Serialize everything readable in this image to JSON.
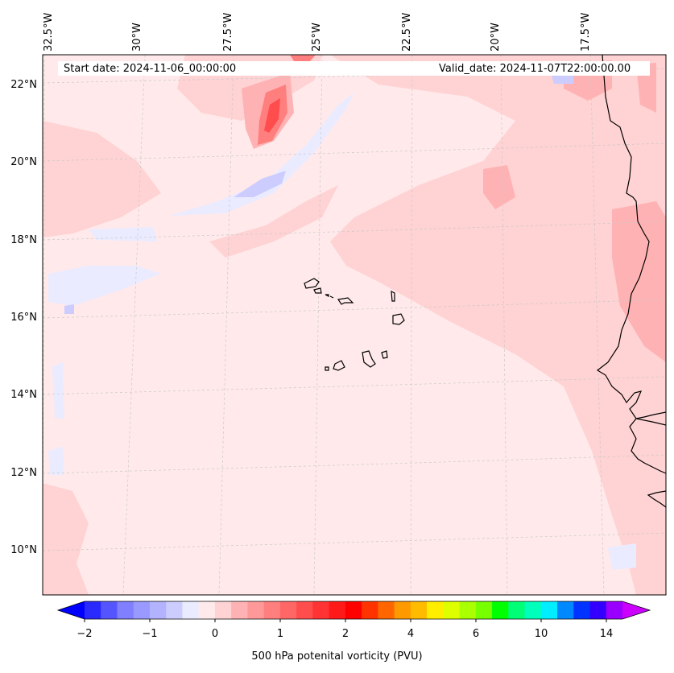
{
  "map": {
    "background_color": "#ffe9ea",
    "lon_labels": [
      "32.5°W",
      "30°W",
      "27.5°W",
      "25°W",
      "22.5°W",
      "20°W",
      "17.5°W"
    ],
    "lat_labels": [
      "22°N",
      "20°N",
      "18°N",
      "16°N",
      "14°N",
      "12°N",
      "10°N"
    ],
    "start_date": "Start date: 2024-11-06_00:00:00",
    "valid_date": "Valid_date: 2024-11-07T22:00:00.00"
  },
  "colorbar": {
    "label": "500 hPa potenital vorticity (PVU)",
    "ticks": [
      "−2",
      "−1",
      "0",
      "1",
      "2",
      "4",
      "6",
      "10",
      "14"
    ],
    "colors": [
      "#0000ff",
      "#2a2aff",
      "#5555ff",
      "#7f7fff",
      "#9999ff",
      "#b2b2ff",
      "#ccccff",
      "#ebebff",
      "#ffe9ea",
      "#ffd2d3",
      "#ffb2b3",
      "#ff9999",
      "#ff7f7f",
      "#ff6666",
      "#ff4c4c",
      "#ff3333",
      "#ff1a1a",
      "#ff0000",
      "#ff3300",
      "#ff6600",
      "#ff9900",
      "#ffbb00",
      "#ffee00",
      "#ddff00",
      "#aaff00",
      "#77ff00",
      "#00ff00",
      "#00ff77",
      "#00ffbb",
      "#00eeff",
      "#0088ff",
      "#0033ff",
      "#3300ff",
      "#9900ff",
      "#cc00ff"
    ]
  }
}
